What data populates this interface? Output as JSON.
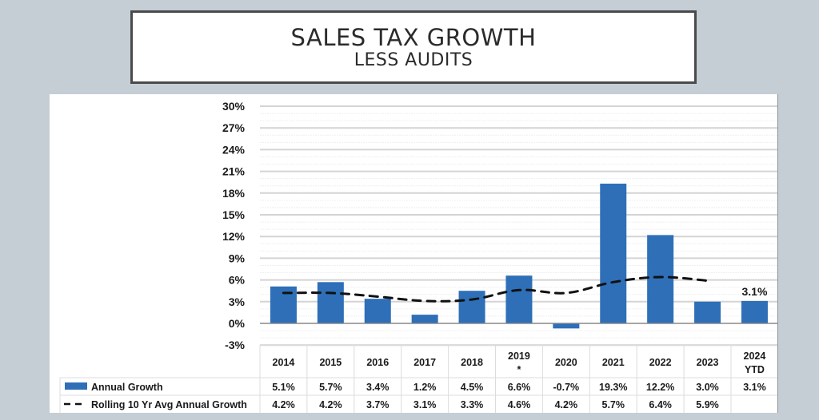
{
  "title": {
    "main": "SALES TAX GROWTH",
    "sub": "LESS AUDITS"
  },
  "colors": {
    "bar": "#2e6fb8",
    "line": "#111111",
    "background": "#c5ced5"
  },
  "chart_data": {
    "type": "bar",
    "title": "SALES TAX GROWTH LESS AUDITS",
    "xlabel": "",
    "ylabel": "",
    "ylim": [
      -3,
      30
    ],
    "yticks": [
      30,
      27,
      24,
      21,
      18,
      15,
      12,
      9,
      6,
      3,
      0,
      -3
    ],
    "ytick_labels": [
      "30%",
      "27%",
      "24%",
      "21%",
      "18%",
      "15%",
      "12%",
      "9%",
      "6%",
      "3%",
      "0%",
      "-3%"
    ],
    "grid": true,
    "categories": [
      "2014",
      "2015",
      "2016",
      "2017",
      "2018",
      "2019 *",
      "2020",
      "2021",
      "2022",
      "2023",
      "2024 YTD"
    ],
    "category_lines": [
      [
        "2014"
      ],
      [
        "2015"
      ],
      [
        "2016"
      ],
      [
        "2017"
      ],
      [
        "2018"
      ],
      [
        "2019",
        "*"
      ],
      [
        "2020"
      ],
      [
        "2021"
      ],
      [
        "2022"
      ],
      [
        "2023"
      ],
      [
        "2024",
        "YTD"
      ]
    ],
    "series": [
      {
        "name": "Annual Growth",
        "type": "bar",
        "values": [
          5.1,
          5.7,
          3.4,
          1.2,
          4.5,
          6.6,
          -0.7,
          19.3,
          12.2,
          3.0,
          3.1
        ],
        "labels": [
          "5.1%",
          "5.7%",
          "3.4%",
          "1.2%",
          "4.5%",
          "6.6%",
          "-0.7%",
          "19.3%",
          "12.2%",
          "3.0%",
          "3.1%"
        ]
      },
      {
        "name": "Rolling 10 Yr Avg Annual Growth",
        "type": "line",
        "style": "dashed",
        "values": [
          4.2,
          4.2,
          3.7,
          3.1,
          3.3,
          4.6,
          4.2,
          5.7,
          6.4,
          5.9,
          null
        ],
        "labels": [
          "4.2%",
          "4.2%",
          "3.7%",
          "3.1%",
          "3.3%",
          "4.6%",
          "4.2%",
          "5.7%",
          "6.4%",
          "5.9%",
          ""
        ]
      }
    ],
    "annotations": [
      {
        "category": "2024 YTD",
        "text": "3.1%"
      }
    ],
    "legend": "data-table-bottom"
  }
}
